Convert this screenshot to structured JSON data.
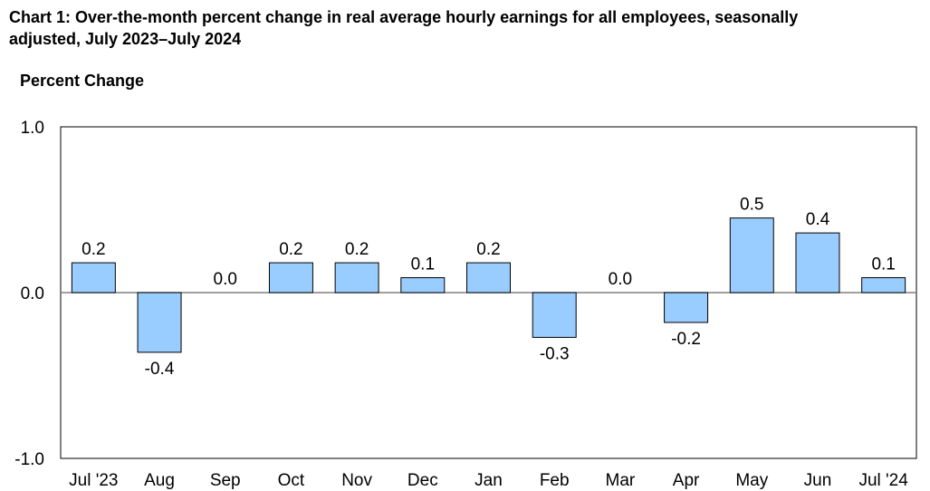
{
  "chart_data": {
    "type": "bar",
    "title_line1": "Chart 1: Over-the-month percent change in real average hourly earnings for all employees, seasonally",
    "title_line2": "adjusted, July 2023–July 2024",
    "ylabel": "Percent Change",
    "xlabel": "",
    "ylim": [
      -1.0,
      1.0
    ],
    "yticks": [
      "1.0",
      "0.0",
      "-1.0"
    ],
    "categories": [
      "Jul '23",
      "Aug",
      "Sep",
      "Oct",
      "Nov",
      "Dec",
      "Jan",
      "Feb",
      "Mar",
      "Apr",
      "May",
      "Jun",
      "Jul '24"
    ],
    "values": [
      0.18,
      -0.36,
      0.0,
      0.18,
      0.18,
      0.09,
      0.18,
      -0.27,
      0.0,
      -0.18,
      0.45,
      0.36,
      0.09
    ],
    "value_labels": [
      "0.2",
      "-0.4",
      "0.0",
      "0.2",
      "0.2",
      "0.1",
      "0.2",
      "-0.3",
      "0.0",
      "-0.2",
      "0.5",
      "0.4",
      "0.1"
    ],
    "grid": false,
    "legend": "none",
    "colors": {
      "bar_fill": "#99ccff",
      "bar_stroke": "#000000",
      "axis": "#000000",
      "zero_line": "#808080"
    }
  }
}
